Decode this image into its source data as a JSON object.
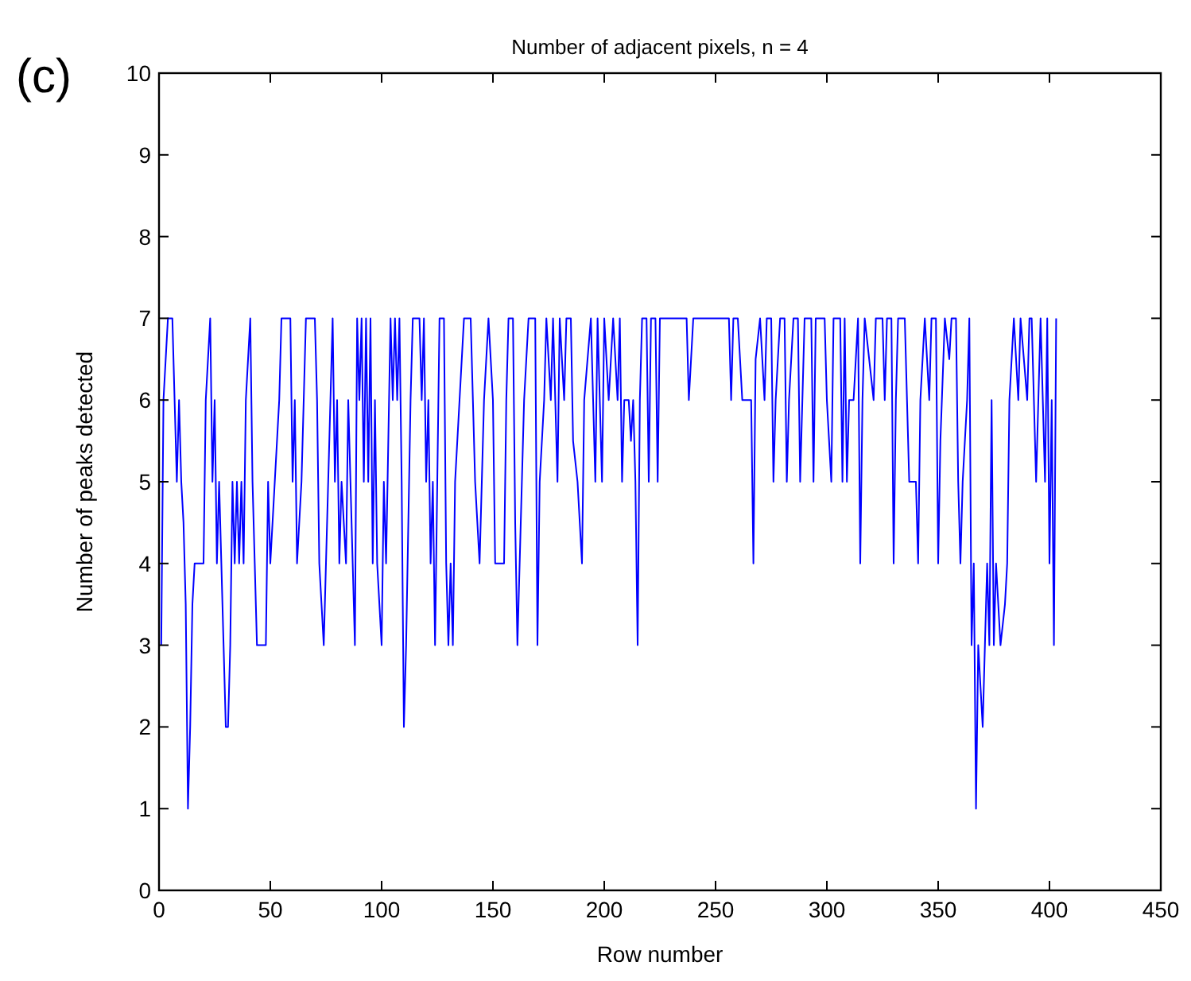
{
  "chart_data": {
    "type": "line",
    "title": "Number of adjacent pixels, n = 4",
    "xlabel": "Row number",
    "ylabel": "Number of peaks detected",
    "annotations": [
      "(c)"
    ],
    "xlim": [
      0,
      450
    ],
    "ylim": [
      0,
      10
    ],
    "xticks": [
      0,
      50,
      100,
      150,
      200,
      250,
      300,
      350,
      400,
      450
    ],
    "yticks": [
      0,
      1,
      2,
      3,
      4,
      5,
      6,
      7,
      8,
      9,
      10
    ],
    "grid": false,
    "marker": "none",
    "line_style": "solid",
    "series": [
      {
        "color": "#0000ff",
        "x": [
          1,
          2,
          4,
          6,
          7,
          8,
          9,
          10,
          11,
          12,
          13,
          14,
          15,
          16,
          20,
          21,
          23,
          24,
          25,
          26,
          27,
          28,
          29,
          30,
          31,
          32,
          33,
          34,
          35,
          36,
          37,
          38,
          39,
          41,
          42,
          43,
          44,
          48,
          49,
          50,
          52,
          54,
          55,
          59,
          60,
          61,
          62,
          64,
          65,
          66,
          70,
          71,
          72,
          73,
          74,
          75,
          76,
          78,
          79,
          80,
          81,
          82,
          84,
          85,
          86,
          88,
          89,
          90,
          91,
          92,
          93,
          94,
          95,
          96,
          97,
          98,
          100,
          101,
          102,
          104,
          105,
          106,
          107,
          108,
          109,
          110,
          111,
          113,
          114,
          117,
          118,
          119,
          120,
          121,
          122,
          123,
          124,
          125,
          126,
          128,
          129,
          130,
          131,
          132,
          133,
          135,
          137,
          140,
          141,
          142,
          144,
          146,
          148,
          150,
          151,
          155,
          156,
          157,
          159,
          160,
          161,
          162,
          164,
          166,
          169,
          170,
          171,
          173,
          174,
          176,
          177,
          179,
          180,
          182,
          183,
          185,
          186,
          188,
          190,
          191,
          194,
          196,
          197,
          198,
          199,
          200,
          202,
          204,
          206,
          207,
          208,
          209,
          211,
          212,
          213,
          214,
          215,
          216,
          217,
          219,
          220,
          221,
          223,
          224,
          225,
          237,
          238,
          239,
          240,
          256,
          257,
          258,
          260,
          261,
          262,
          266,
          267,
          268,
          270,
          272,
          273,
          275,
          276,
          277,
          279,
          281,
          282,
          283,
          285,
          287,
          288,
          289,
          290,
          293,
          294,
          295,
          299,
          300,
          302,
          303,
          306,
          307,
          308,
          309,
          310,
          312,
          313,
          314,
          315,
          316,
          317,
          321,
          322,
          325,
          326,
          327,
          329,
          330,
          331,
          332,
          335,
          336,
          337,
          340,
          341,
          342,
          344,
          346,
          347,
          349,
          350,
          351,
          353,
          355,
          356,
          358,
          359,
          360,
          361,
          363,
          364,
          365,
          366,
          367,
          368,
          369,
          370,
          371,
          372,
          373,
          374,
          375,
          376,
          378,
          380,
          381,
          382,
          384,
          386,
          387,
          390,
          391,
          392,
          393,
          394,
          395,
          396,
          398,
          399,
          400,
          401,
          402,
          403
        ],
        "values": [
          3,
          6,
          7,
          7,
          6,
          5,
          6,
          5,
          4.5,
          3.5,
          1,
          2,
          3.5,
          4,
          4,
          6,
          7,
          5,
          6,
          4,
          5,
          4,
          3,
          2,
          2,
          3,
          5,
          4,
          5,
          4,
          5,
          4,
          6,
          7,
          5,
          4,
          3,
          3,
          5,
          4,
          5,
          6,
          7,
          7,
          5,
          6,
          4,
          5,
          6,
          7,
          7,
          6,
          4,
          3.5,
          3,
          4,
          5,
          7,
          5,
          6,
          4,
          5,
          4,
          6,
          5,
          3,
          7,
          6,
          7,
          5,
          7,
          5,
          7,
          4,
          6,
          4,
          3,
          5,
          4,
          7,
          6,
          7,
          6,
          7,
          5,
          2,
          3,
          6,
          7,
          7,
          6,
          7,
          5,
          6,
          4,
          5,
          3,
          5,
          7,
          7,
          4,
          3,
          4,
          3,
          5,
          6,
          7,
          7,
          6,
          5,
          4,
          6,
          7,
          6,
          4,
          4,
          6,
          7,
          7,
          4.5,
          3,
          4,
          6,
          7,
          7,
          3,
          5,
          6,
          7,
          6,
          7,
          5,
          7,
          6,
          7,
          7,
          5.5,
          5,
          4,
          6,
          7,
          5,
          7,
          6,
          5,
          7,
          6,
          7,
          6,
          7,
          5,
          6,
          6,
          5.5,
          6,
          5,
          3,
          6,
          7,
          7,
          5,
          7,
          7,
          5,
          7,
          7,
          6,
          6.5,
          7,
          7,
          6,
          7,
          7,
          6.5,
          6,
          6,
          4,
          6.5,
          7,
          6,
          7,
          7,
          5,
          6,
          7,
          7,
          5,
          6,
          7,
          7,
          5,
          6,
          7,
          7,
          5,
          7,
          7,
          6,
          5,
          7,
          7,
          5,
          7,
          5,
          6,
          6,
          6.5,
          7,
          4,
          6,
          7,
          6,
          7,
          7,
          6,
          7,
          7,
          4,
          6,
          7,
          7,
          6,
          5,
          5,
          4,
          6,
          7,
          6,
          7,
          7,
          4,
          5.5,
          7,
          6.5,
          7,
          7,
          5,
          4,
          5,
          6,
          7,
          3,
          4,
          1,
          3,
          2.5,
          2,
          3,
          4,
          3,
          6,
          3,
          4,
          3,
          3.5,
          4,
          6,
          7,
          6,
          7,
          6,
          7,
          7,
          6,
          5,
          6,
          7,
          5,
          7,
          4,
          6,
          3,
          7
        ]
      }
    ]
  }
}
